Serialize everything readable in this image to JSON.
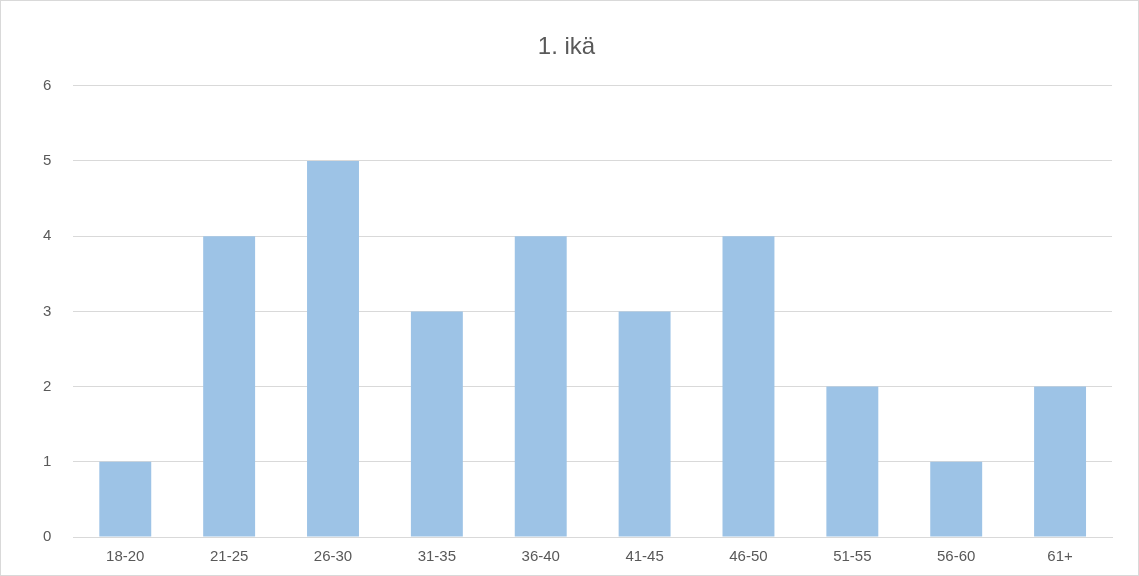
{
  "chart_data": {
    "type": "bar",
    "title": "1. ikä",
    "categories": [
      "18-20",
      "21-25",
      "26-30",
      "31-35",
      "36-40",
      "41-45",
      "46-50",
      "51-55",
      "56-60",
      "61+"
    ],
    "values": [
      1,
      4,
      5,
      3,
      4,
      3,
      4,
      2,
      1,
      2
    ],
    "color": "#9dc3e6",
    "ylim": [
      0,
      6
    ],
    "yticks": [
      0,
      1,
      2,
      3,
      4,
      5,
      6
    ],
    "grid": "y"
  }
}
